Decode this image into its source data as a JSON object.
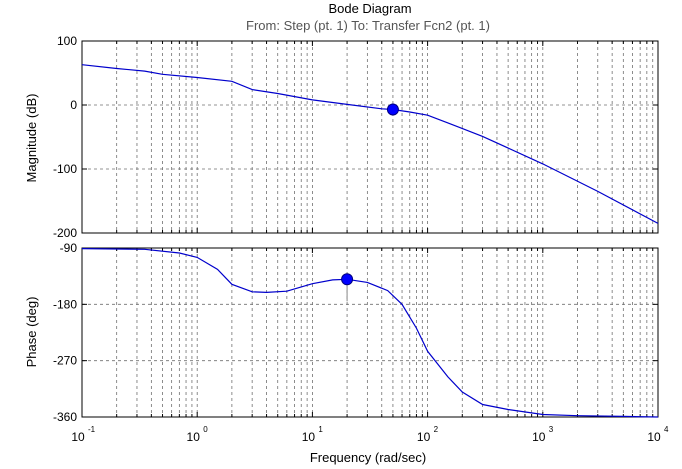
{
  "chart_data": {
    "type": "line",
    "title": "Bode Diagram",
    "subtitle": "From: Step (pt. 1)  To: Transfer Fcn2 (pt. 1)",
    "xlabel": "Frequency  (rad/sec)",
    "x_scale": "log",
    "x_range": [
      0.1,
      10000
    ],
    "x_tick_labels": [
      {
        "base": "10",
        "exp": "-1"
      },
      {
        "base": "10",
        "exp": "0"
      },
      {
        "base": "10",
        "exp": "1"
      },
      {
        "base": "10",
        "exp": "2"
      },
      {
        "base": "10",
        "exp": "3"
      },
      {
        "base": "10",
        "exp": "4"
      }
    ],
    "grid": true,
    "line_color": "#0000cc",
    "marker_color": "#0000ff",
    "panels": [
      {
        "ylabel": "Magnitude (dB)",
        "ylim": [
          -200,
          100
        ],
        "yticks": [
          100,
          0,
          -100,
          -200
        ],
        "series": [
          {
            "x": [
              0.1,
              0.2,
              0.35,
              0.5,
              1,
              2,
              3,
              5,
              10,
              20,
              40,
              50,
              70,
              100,
              150,
              300,
              1000,
              3000,
              10000
            ],
            "y": [
              63,
              57,
              53,
              48,
              43,
              37,
              24,
              18,
              8,
              1,
              -6,
              -7,
              -11,
              -16,
              -28,
              -49,
              -92,
              -135,
              -185
            ]
          }
        ],
        "marker": {
          "x": 50,
          "y": -7
        }
      },
      {
        "ylabel": "Phase (deg)",
        "ylim": [
          -360,
          -90
        ],
        "yticks": [
          -90,
          -180,
          -270,
          -360
        ],
        "series": [
          {
            "x": [
              0.1,
              0.35,
              0.7,
              1,
              1.5,
              2,
              3,
              4,
              6,
              10,
              15,
              20,
              30,
              45,
              60,
              80,
              100,
              150,
              200,
              300,
              500,
              1000,
              2000,
              5000,
              10000
            ],
            "y": [
              -91,
              -92,
              -98,
              -105,
              -124,
              -148,
              -160,
              -161,
              -159,
              -147,
              -141,
              -140,
              -145,
              -158,
              -180,
              -218,
              -255,
              -296,
              -320,
              -340,
              -348,
              -356,
              -358,
              -359,
              -360
            ]
          }
        ],
        "marker": {
          "x": 20,
          "y": -140
        }
      }
    ]
  }
}
